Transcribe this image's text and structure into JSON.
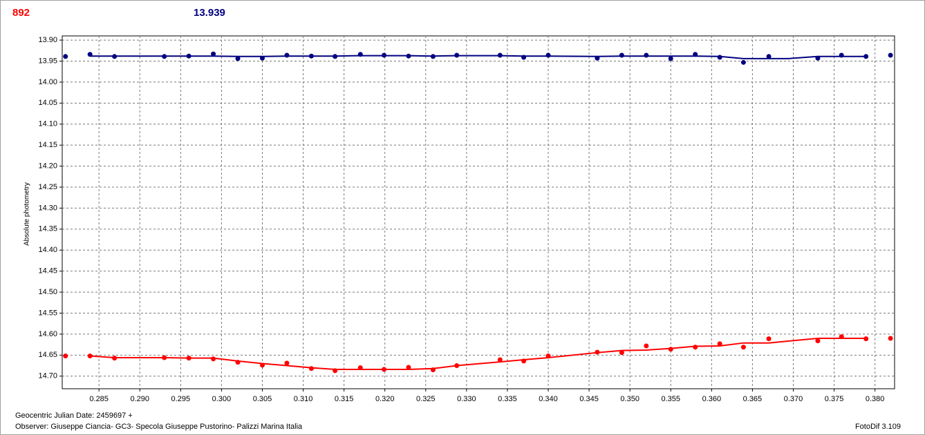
{
  "chart_data": {
    "type": "scatter",
    "header_left": "892",
    "header_right": "13.939",
    "y_label": "Absolute photometry",
    "x_caption": "Geocentric Julian Date: 2459697 +",
    "observer": "Observer: Giuseppe Ciancia- GC3- Specola Giuseppe Pustorino- Palizzi Marina Italia",
    "software": "FotoDif 3.109",
    "grid": true,
    "xlim": [
      0.2805,
      0.3824
    ],
    "ylim": [
      14.73,
      13.89
    ],
    "xticks": [
      0.285,
      {
        "value": 0.29,
        "label": "0.290"
      },
      0.295,
      {
        "value": 0.3,
        "label": "0.300"
      },
      0.305,
      {
        "value": 0.31,
        "label": "0.310"
      },
      0.315,
      {
        "value": 0.32,
        "label": "0.320"
      },
      0.325,
      {
        "value": 0.33,
        "label": "0.330"
      },
      0.335,
      {
        "value": 0.34,
        "label": "0.340"
      },
      0.345,
      {
        "value": 0.35,
        "label": "0.350"
      },
      0.355,
      {
        "value": 0.36,
        "label": "0.360"
      },
      0.365,
      {
        "value": 0.37,
        "label": "0.370"
      },
      0.375,
      {
        "value": 0.38,
        "label": "0.380"
      }
    ],
    "yticks": [
      {
        "value": 13.9,
        "label": "13.90"
      },
      13.95,
      {
        "value": 14.0,
        "label": "14.00"
      },
      14.05,
      {
        "value": 14.1,
        "label": "14.10"
      },
      14.15,
      {
        "value": 14.2,
        "label": "14.20"
      },
      14.25,
      {
        "value": 14.3,
        "label": "14.30"
      },
      14.35,
      {
        "value": 14.4,
        "label": "14.40"
      },
      14.45,
      {
        "value": 14.5,
        "label": "14.50"
      },
      14.55,
      {
        "value": 14.6,
        "label": "14.60"
      },
      14.65,
      {
        "value": 14.7,
        "label": "14.70"
      }
    ],
    "series": [
      {
        "color": "#ff0000",
        "mode": "markers",
        "x": [
          0.2809,
          0.2839,
          0.2869,
          0.293,
          0.296,
          0.299,
          0.302,
          0.305,
          0.308,
          0.311,
          0.3139,
          0.317,
          0.3199,
          0.3229,
          0.3259,
          0.3288,
          0.3341,
          0.337,
          0.34,
          0.346,
          0.349,
          0.352,
          0.355,
          0.358,
          0.361,
          0.3639,
          0.367,
          0.373,
          0.3759,
          0.3789,
          0.3819
        ],
        "values": [
          14.652,
          14.652,
          14.657,
          14.656,
          14.657,
          14.659,
          14.667,
          14.674,
          14.669,
          14.682,
          14.687,
          14.68,
          14.684,
          14.679,
          14.685,
          14.675,
          14.661,
          14.664,
          14.652,
          14.643,
          14.644,
          14.628,
          14.636,
          14.631,
          14.623,
          14.631,
          14.611,
          14.616,
          14.606,
          14.611,
          14.61
        ]
      },
      {
        "color": "#ff0000",
        "mode": "line",
        "x": [
          0.2839,
          0.2869,
          0.293,
          0.296,
          0.299,
          0.302,
          0.305,
          0.308,
          0.311,
          0.3139,
          0.317,
          0.3199,
          0.3229,
          0.3259,
          0.3288,
          0.3341,
          0.337,
          0.34,
          0.346,
          0.349,
          0.352,
          0.355,
          0.358,
          0.361,
          0.3639,
          0.367,
          0.373,
          0.3759,
          0.3789
        ],
        "values": [
          14.652,
          14.656,
          14.656,
          14.657,
          14.657,
          14.664,
          14.67,
          14.675,
          14.68,
          14.684,
          14.684,
          14.684,
          14.684,
          14.682,
          14.675,
          14.666,
          14.661,
          14.656,
          14.644,
          14.639,
          14.638,
          14.634,
          14.629,
          14.628,
          14.621,
          14.621,
          14.61,
          14.61,
          14.61
        ]
      },
      {
        "color": "#000080",
        "mode": "markers",
        "x": [
          0.2809,
          0.2839,
          0.2869,
          0.293,
          0.296,
          0.299,
          0.302,
          0.305,
          0.308,
          0.311,
          0.3139,
          0.317,
          0.3199,
          0.3229,
          0.3259,
          0.3288,
          0.3341,
          0.337,
          0.34,
          0.346,
          0.349,
          0.352,
          0.355,
          0.358,
          0.361,
          0.3639,
          0.367,
          0.373,
          0.3759,
          0.3789,
          0.3819
        ],
        "values": [
          13.939,
          13.934,
          13.939,
          13.939,
          13.938,
          13.933,
          13.944,
          13.943,
          13.936,
          13.938,
          13.939,
          13.934,
          13.936,
          13.938,
          13.939,
          13.936,
          13.936,
          13.941,
          13.936,
          13.943,
          13.936,
          13.936,
          13.944,
          13.934,
          13.941,
          13.953,
          13.939,
          13.943,
          13.936,
          13.939,
          13.936
        ]
      },
      {
        "color": "#000080",
        "mode": "line",
        "x": [
          0.2839,
          0.2869,
          0.293,
          0.296,
          0.299,
          0.302,
          0.305,
          0.308,
          0.311,
          0.3139,
          0.317,
          0.3199,
          0.3229,
          0.3259,
          0.3288,
          0.3341,
          0.337,
          0.34,
          0.346,
          0.349,
          0.352,
          0.355,
          0.358,
          0.361,
          0.3639,
          0.367,
          0.3694,
          0.373,
          0.3759,
          0.3789
        ],
        "values": [
          13.938,
          13.938,
          13.938,
          13.938,
          13.938,
          13.939,
          13.939,
          13.938,
          13.938,
          13.938,
          13.937,
          13.937,
          13.937,
          13.938,
          13.937,
          13.937,
          13.938,
          13.938,
          13.939,
          13.938,
          13.938,
          13.938,
          13.938,
          13.939,
          13.944,
          13.944,
          13.944,
          13.939,
          13.939,
          13.939
        ]
      }
    ]
  }
}
